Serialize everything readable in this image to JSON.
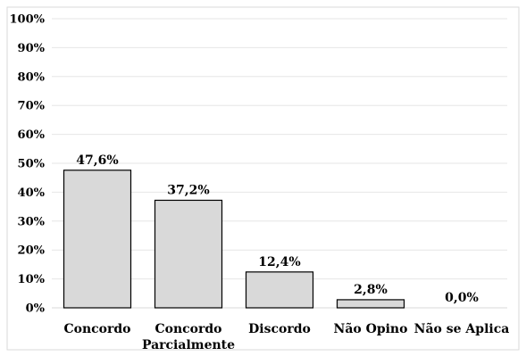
{
  "chart_data": {
    "type": "bar",
    "title": "",
    "xlabel": "",
    "ylabel": "",
    "categories": [
      [
        "Concordo"
      ],
      [
        "Concordo",
        "Parcialmente"
      ],
      [
        "Discordo"
      ],
      [
        "Não Opino"
      ],
      [
        "Não se Aplica"
      ]
    ],
    "values": [
      47.6,
      37.2,
      12.4,
      2.8,
      0.0
    ],
    "value_labels": [
      "47,6%",
      "37,2%",
      "12,4%",
      "2,8%",
      "0,0%"
    ],
    "ylim": [
      0,
      100
    ],
    "yticks": [
      "0%",
      "10%",
      "20%",
      "30%",
      "40%",
      "50%",
      "60%",
      "70%",
      "80%",
      "90%",
      "100%"
    ],
    "grid": true,
    "legend": "none",
    "bar_color": "#d9d9d9",
    "bar_edge_color": "#000000"
  }
}
